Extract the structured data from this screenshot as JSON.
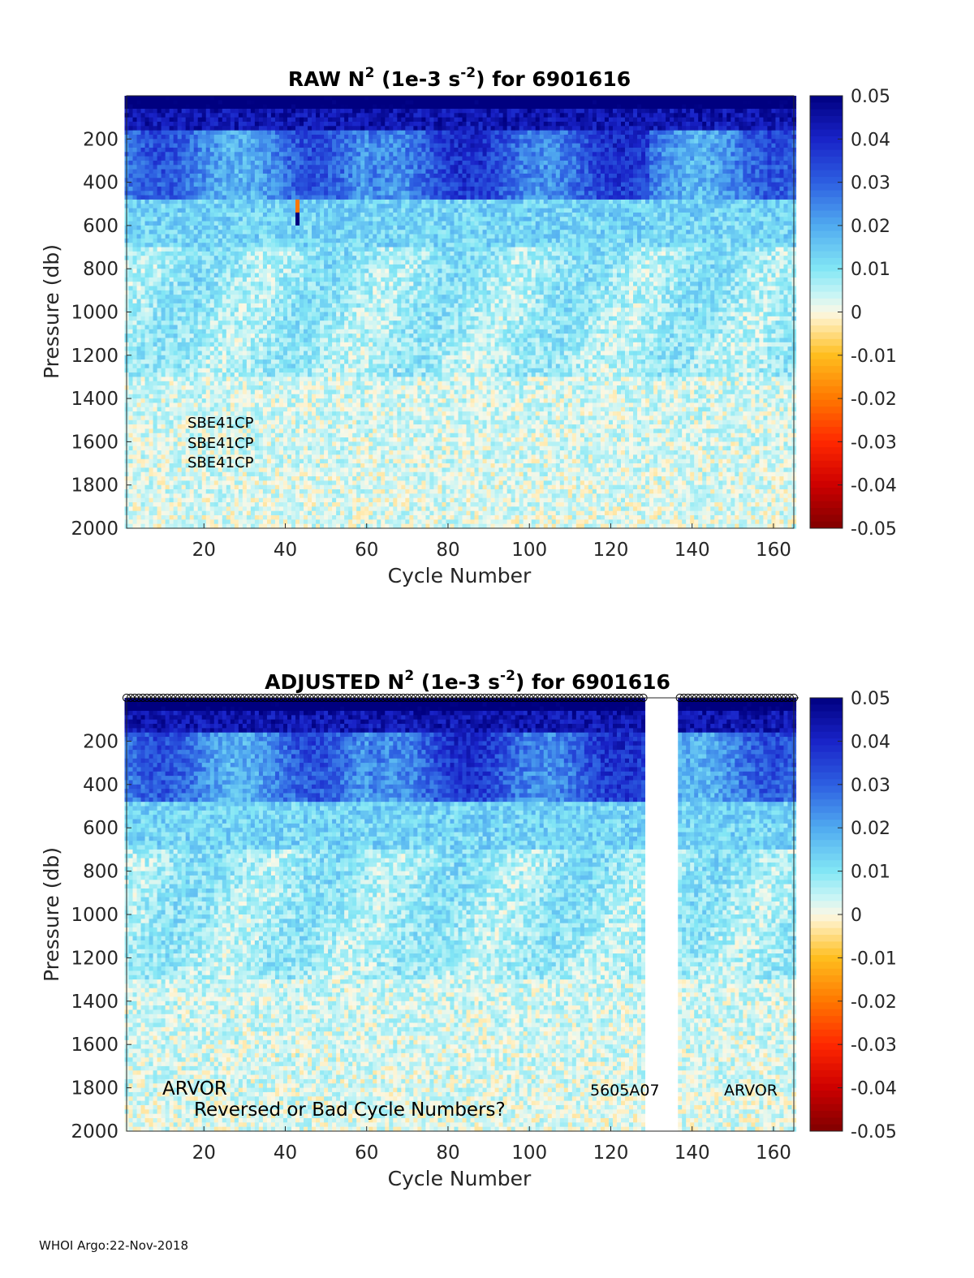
{
  "footer": "WHOI Argo:22-Nov-2018",
  "colorbar": {
    "ticks": [
      "0.05",
      "0.04",
      "0.03",
      "0.02",
      "0.01",
      "0",
      "-0.01",
      "-0.02",
      "-0.03",
      "-0.04",
      "-0.05"
    ],
    "range": [
      -0.05,
      0.05
    ],
    "colormap": "jet-like diverging (dark red → orange → cream at 0 → cyan → dark blue)"
  },
  "chart_data": [
    {
      "type": "heatmap",
      "id": "raw",
      "title_prefix": "RAW N",
      "title_sup": "2",
      "title_mid": " (1e-3 s",
      "title_sup2": "-2",
      "title_suffix": ") for 6901616",
      "xlabel": "Cycle Number",
      "ylabel": "Pressure (db)",
      "xlim": [
        1,
        165
      ],
      "ylim": [
        2000,
        0
      ],
      "x_ticks": [
        20,
        40,
        60,
        80,
        100,
        120,
        140,
        160
      ],
      "y_ticks": [
        200,
        400,
        600,
        800,
        1000,
        1200,
        1400,
        1600,
        1800,
        2000
      ],
      "clim": [
        -0.05,
        0.05
      ],
      "annotations": [
        "SBE41CP",
        "SBE41CP",
        "SBE41CP"
      ],
      "gap_cycles": [],
      "cycle_markers": false
    },
    {
      "type": "heatmap",
      "id": "adjusted",
      "title_prefix": "ADJUSTED N",
      "title_sup": "2",
      "title_mid": " (1e-3 s",
      "title_sup2": "-2",
      "title_suffix": ") for 6901616",
      "xlabel": "Cycle Number",
      "ylabel": "Pressure (db)",
      "xlim": [
        1,
        165
      ],
      "ylim": [
        2000,
        0
      ],
      "x_ticks": [
        20,
        40,
        60,
        80,
        100,
        120,
        140,
        160
      ],
      "y_ticks": [
        200,
        400,
        600,
        800,
        1000,
        1200,
        1400,
        1600,
        1800,
        2000
      ],
      "clim": [
        -0.05,
        0.05
      ],
      "annotations": [
        "ARVOR",
        "Reversed or Bad Cycle Numbers?",
        "5605A07",
        "ARVOR"
      ],
      "gap_cycles": [
        129,
        136
      ],
      "cycle_markers": true
    }
  ]
}
